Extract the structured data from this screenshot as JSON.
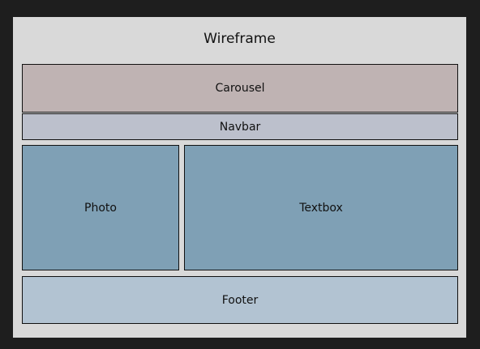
{
  "wireframe": {
    "title": "Wireframe",
    "blocks": {
      "carousel": "Carousel",
      "navbar": "Navbar",
      "photo": "Photo",
      "textbox": "Textbox",
      "footer": "Footer"
    }
  },
  "colors": {
    "background": "#1e1e1e",
    "frame": "#d9d9d9",
    "carousel": "#bfb3b3",
    "navbar": "#bcc0cc",
    "content_blocks": "#7fa0b5",
    "footer": "#b2c3d2",
    "border": "#111111"
  }
}
